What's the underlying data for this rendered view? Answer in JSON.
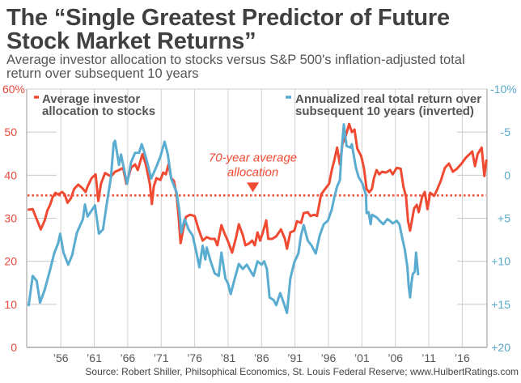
{
  "chart_data": {
    "type": "line",
    "title": "The “Single Greatest Predictor of Future Stock Market Returns”",
    "title_lines": [
      "The “Single Greatest Predictor of Future",
      "Stock Market Returns”"
    ],
    "subtitle": "Average investor allocation to stocks versus S&P 500's inflation-adjusted total return over subsequent 10 years",
    "subtitle_lines": [
      "Average investor allocation to stocks versus S&P 500's inflation-adjusted total",
      "return over subsequent 10 years"
    ],
    "xlabel": "",
    "ylabel_left": "",
    "ylabel_right": "",
    "xlim": [
      1950.9,
      2019.7
    ],
    "ylim_left": [
      0,
      60
    ],
    "ylim_right": [
      -10,
      20
    ],
    "right_axis_inverted": true,
    "grid": true,
    "x_ticks": [
      {
        "value": 1956,
        "label": "’56"
      },
      {
        "value": 1961,
        "label": "’61"
      },
      {
        "value": 1966,
        "label": "’66"
      },
      {
        "value": 1971,
        "label": "’71"
      },
      {
        "value": 1976,
        "label": "’76"
      },
      {
        "value": 1981,
        "label": "’81"
      },
      {
        "value": 1986,
        "label": "’86"
      },
      {
        "value": 1991,
        "label": "’91"
      },
      {
        "value": 1996,
        "label": "’96"
      },
      {
        "value": 2001,
        "label": "’01"
      },
      {
        "value": 2006,
        "label": "’06"
      },
      {
        "value": 2011,
        "label": "’11"
      },
      {
        "value": 2016,
        "label": "’16"
      }
    ],
    "y_ticks_left": [
      {
        "value": 60,
        "label": "60%"
      },
      {
        "value": 50,
        "label": "50"
      },
      {
        "value": 40,
        "label": "40"
      },
      {
        "value": 30,
        "label": "30"
      },
      {
        "value": 20,
        "label": "20"
      },
      {
        "value": 10,
        "label": "10"
      },
      {
        "value": 0,
        "label": "0"
      }
    ],
    "y_ticks_right": [
      {
        "value": -10,
        "label": "-10%"
      },
      {
        "value": -5,
        "label": "-5"
      },
      {
        "value": 0,
        "label": "0"
      },
      {
        "value": 5,
        "label": "+5"
      },
      {
        "value": 10,
        "label": "+10"
      },
      {
        "value": 15,
        "label": "+15"
      },
      {
        "value": 20,
        "label": "+20"
      }
    ],
    "left_axis_label_color": "#e8493a",
    "right_axis_label_color": "#5aa9c9",
    "legend": [
      {
        "label_lines": [
          "Average investor",
          "allocation to stocks"
        ],
        "color": "#f04a33",
        "placement": "top-left"
      },
      {
        "label_lines": [
          "Annualized real total return over",
          "subsequent 10 years (inverted)"
        ],
        "color": "#5aacd0",
        "placement": "top-right"
      }
    ],
    "series": [
      {
        "name": "Average investor allocation to stocks",
        "axis": "left",
        "unit": "%",
        "color": "#f04a33",
        "x": [
          1951.2,
          1951.8,
          1953.0,
          1953.6,
          1954.0,
          1954.4,
          1954.8,
          1955.2,
          1955.6,
          1956.2,
          1956.6,
          1957.0,
          1957.5,
          1958.0,
          1958.6,
          1959.2,
          1959.7,
          1960.0,
          1960.6,
          1961.2,
          1961.6,
          1962.0,
          1962.6,
          1963.5,
          1964.1,
          1964.7,
          1965.3,
          1965.8,
          1966.5,
          1967.1,
          1967.5,
          1968.2,
          1968.7,
          1969.3,
          1969.6,
          1969.9,
          1970.3,
          1970.9,
          1971.3,
          1971.7,
          1972.1,
          1972.5,
          1972.9,
          1973.3,
          1973.6,
          1973.9,
          1974.3,
          1974.7,
          1975.3,
          1976.0,
          1976.6,
          1977.2,
          1977.8,
          1978.4,
          1979.0,
          1979.4,
          1980.0,
          1980.4,
          1981.0,
          1981.6,
          1982.2,
          1982.6,
          1983.2,
          1983.6,
          1984.2,
          1984.6,
          1985.0,
          1985.4,
          1985.8,
          1986.2,
          1986.7,
          1987.0,
          1987.6,
          1988.2,
          1988.9,
          1989.5,
          1989.8,
          1990.3,
          1990.9,
          1991.3,
          1991.9,
          1992.3,
          1992.9,
          1993.3,
          1993.9,
          1994.3,
          1994.9,
          1995.5,
          1996.1,
          1996.5,
          1996.9,
          1997.3,
          1997.7,
          1998.1,
          1998.5,
          1999.1,
          1999.5,
          1999.9,
          2000.3,
          2000.9,
          2001.3,
          2001.7,
          2002.1,
          2002.5,
          2002.8,
          2003.2,
          2003.6,
          2004.0,
          2004.6,
          2005.2,
          2005.6,
          2006.2,
          2006.8,
          2007.2,
          2007.6,
          2007.9,
          2008.2,
          2008.8,
          2009.2,
          2009.5,
          2010.0,
          2010.4,
          2010.8,
          2011.2,
          2011.8,
          2012.2,
          2012.8,
          2013.4,
          2014.0,
          2014.6,
          2015.2,
          2015.9,
          2016.5,
          2017.1,
          2017.5,
          2017.9,
          2018.3,
          2018.9,
          2019.3,
          2019.6
        ],
        "values": [
          32.0,
          32.1,
          27.4,
          29.5,
          31.8,
          33.1,
          35.0,
          35.9,
          35.5,
          36.1,
          35.5,
          33.6,
          34.6,
          36.8,
          37.8,
          37.0,
          36.1,
          37.4,
          39.3,
          40.2,
          34.0,
          38.0,
          40.5,
          39.7,
          40.8,
          41.2,
          41.7,
          38.0,
          41.7,
          42.5,
          41.2,
          44.9,
          42.5,
          38.0,
          33.3,
          37.4,
          39.3,
          38.9,
          40.6,
          40.2,
          42.5,
          39.3,
          38.7,
          35.5,
          30.5,
          24.2,
          27.4,
          30.3,
          30.8,
          30.5,
          27.4,
          24.8,
          25.6,
          25.2,
          25.2,
          23.7,
          28.4,
          26.7,
          24.6,
          22.0,
          25.6,
          28.6,
          26.1,
          23.7,
          24.2,
          24.8,
          23.7,
          26.7,
          24.8,
          26.7,
          29.5,
          25.2,
          25.2,
          25.8,
          27.4,
          25.2,
          22.9,
          26.7,
          27.1,
          29.3,
          28.9,
          31.2,
          31.4,
          30.5,
          30.8,
          30.5,
          35.5,
          36.8,
          38.0,
          41.2,
          43.6,
          46.4,
          42.5,
          47.4,
          48.7,
          51.9,
          50.0,
          50.6,
          46.2,
          44.4,
          41.7,
          36.8,
          36.0,
          36.8,
          39.3,
          41.2,
          40.2,
          40.8,
          40.6,
          41.2,
          40.2,
          41.7,
          41.5,
          37.4,
          35.0,
          29.3,
          27.1,
          32.3,
          33.1,
          31.4,
          35.0,
          36.1,
          32.1,
          35.9,
          35.2,
          36.5,
          38.7,
          41.7,
          42.7,
          40.8,
          41.5,
          42.7,
          44.0,
          44.9,
          45.5,
          42.1,
          44.9,
          46.4,
          39.8,
          43.4
        ]
      },
      {
        "name": "Annualized real total return over subsequent 10 years (inverted)",
        "axis": "right",
        "unit": "%",
        "color": "#5aacd0",
        "x": [
          1951.2,
          1951.8,
          1952.4,
          1952.9,
          1953.6,
          1954.4,
          1955.0,
          1955.6,
          1955.9,
          1956.4,
          1957.1,
          1957.7,
          1958.4,
          1959.3,
          1959.6,
          1960.0,
          1961.1,
          1961.7,
          1962.3,
          1962.9,
          1963.5,
          1963.9,
          1964.1,
          1964.7,
          1965.0,
          1965.4,
          1965.9,
          1966.5,
          1967.1,
          1967.7,
          1968.1,
          1968.5,
          1968.9,
          1969.5,
          1970.3,
          1970.9,
          1971.5,
          1972.0,
          1972.5,
          1973.3,
          1973.7,
          1974.0,
          1974.5,
          1975.1,
          1975.7,
          1976.3,
          1976.7,
          1977.2,
          1977.6,
          1977.8,
          1978.4,
          1979.0,
          1979.6,
          1980.0,
          1980.6,
          1981.0,
          1981.4,
          1982.0,
          1982.6,
          1983.2,
          1983.8,
          1984.4,
          1984.8,
          1985.4,
          1986.0,
          1986.4,
          1986.8,
          1987.2,
          1987.8,
          1988.2,
          1988.8,
          1989.3,
          1989.8,
          1990.3,
          1990.9,
          1991.5,
          1991.9,
          1992.3,
          1992.9,
          1993.5,
          1994.1,
          1994.7,
          1995.3,
          1995.9,
          1996.5,
          1996.9,
          1997.3,
          1997.7,
          1998.0,
          1998.3,
          1998.7,
          1999.3,
          1999.5,
          2000.1,
          2000.5,
          2001.1,
          2001.6,
          2001.7,
          2002.0,
          2002.3,
          2002.5,
          2003.2,
          2003.8,
          2004.2,
          2004.8,
          2005.2,
          2005.6,
          2006.2,
          2006.6,
          2007.0,
          2007.4,
          2007.8,
          2008.0,
          2008.2,
          2008.4,
          2008.6,
          2008.9,
          2009.1,
          2009.4
        ],
        "values": [
          15.1,
          11.7,
          12.3,
          14.8,
          13.3,
          11.0,
          9.1,
          7.9,
          6.8,
          9.0,
          10.4,
          9.3,
          6.7,
          5.1,
          3.4,
          4.8,
          3.5,
          6.8,
          6.3,
          3.2,
          0.2,
          -3.7,
          -4.0,
          -1.2,
          -2.4,
          -0.9,
          1.0,
          -1.5,
          -2.6,
          -2.6,
          -3.6,
          -2.6,
          -1.5,
          0.4,
          -1.0,
          -2.2,
          -3.9,
          -2.4,
          0.4,
          2.0,
          4.1,
          6.7,
          5.1,
          6.3,
          7.0,
          9.1,
          10.7,
          8.2,
          9.8,
          8.4,
          10.0,
          11.4,
          11.7,
          9.0,
          12.0,
          12.6,
          13.8,
          12.0,
          10.3,
          10.9,
          10.4,
          11.2,
          11.7,
          10.0,
          10.4,
          10.0,
          10.9,
          14.2,
          14.5,
          15.1,
          13.7,
          14.8,
          16.0,
          12.0,
          10.1,
          9.1,
          7.0,
          5.8,
          7.6,
          8.2,
          9.1,
          7.0,
          5.7,
          5.3,
          4.0,
          2.5,
          1.3,
          0.6,
          -3.1,
          -5.9,
          -3.4,
          -3.2,
          -3.6,
          -0.9,
          0.2,
          1.0,
          2.3,
          4.4,
          4.3,
          5.7,
          4.6,
          4.9,
          5.4,
          5.7,
          5.1,
          5.3,
          5.6,
          5.3,
          5.7,
          7.2,
          8.6,
          10.7,
          12.9,
          14.2,
          12.6,
          11.5,
          11.2,
          9.0,
          11.5
        ]
      }
    ],
    "reference_line": {
      "value": 35.3,
      "axis": "left",
      "style": "dotted",
      "color": "#f04a33",
      "annotation_lines": [
        "70-year average",
        "allocation"
      ],
      "annotation_x": 1984.7,
      "annotation_marker": "down-triangle"
    },
    "source": "Source: Robert Shiller, Philsophical Economics, St. Louis Federal Reserve; www.HulbertRatings.com"
  }
}
